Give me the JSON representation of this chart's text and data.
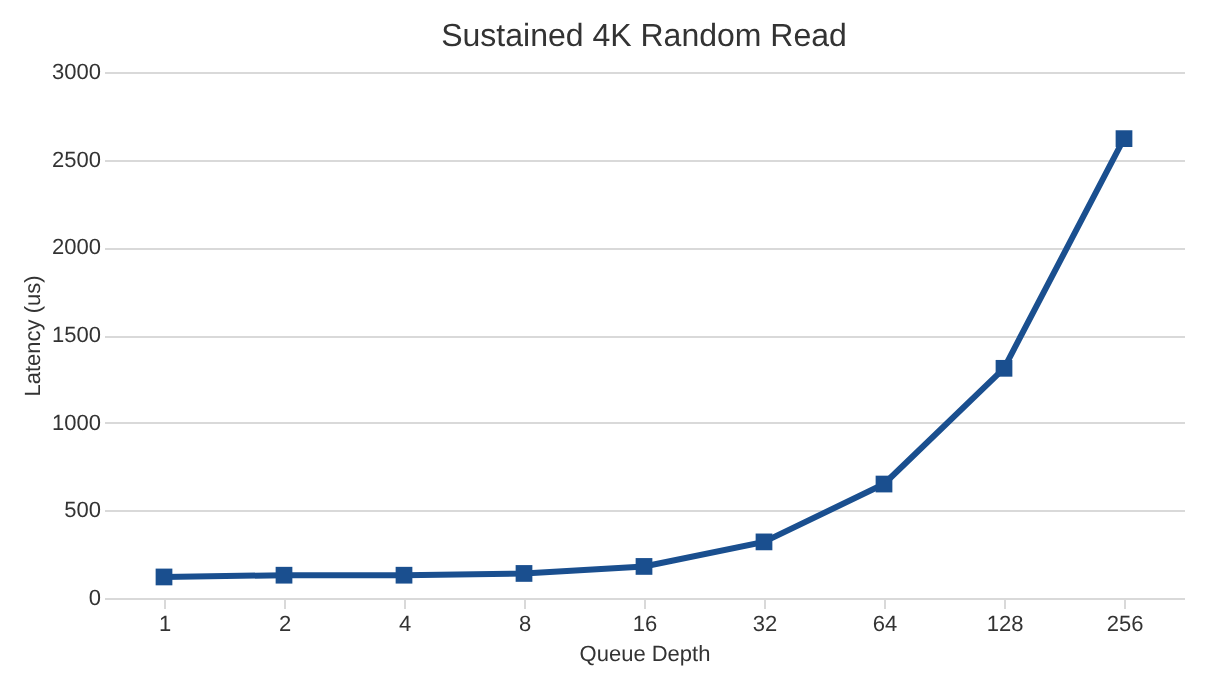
{
  "chart_data": {
    "type": "line",
    "title": "Sustained 4K Random Read",
    "xlabel": "Queue Depth",
    "ylabel": "Latency (us)",
    "categories": [
      "1",
      "2",
      "4",
      "8",
      "16",
      "32",
      "64",
      "128",
      "256"
    ],
    "series": [
      {
        "color": "#1a4f8f",
        "values": [
          120,
          130,
          130,
          140,
          180,
          320,
          650,
          1310,
          2620
        ]
      }
    ],
    "ylim": [
      0,
      3000
    ],
    "yticks": [
      0,
      500,
      1000,
      1500,
      2000,
      2500,
      3000
    ],
    "grid": "y",
    "legend": false,
    "marker": "square",
    "line_style": "solid"
  }
}
